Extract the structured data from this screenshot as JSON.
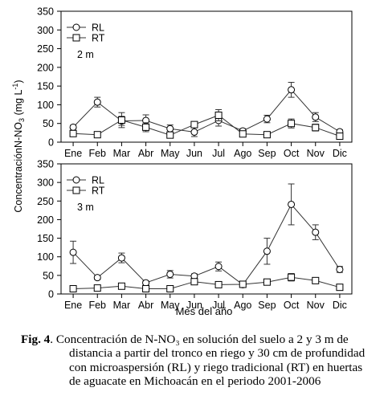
{
  "chart_data": [
    {
      "type": "line",
      "categories": [
        "Ene",
        "Feb",
        "Mar",
        "Abr",
        "May",
        "Jun",
        "Jul",
        "Ago",
        "Sep",
        "Oct",
        "Nov",
        "Dic"
      ],
      "ylim": [
        0,
        350
      ],
      "yticks": [
        "0",
        "50",
        "100",
        "150",
        "200",
        "250",
        "300",
        "350"
      ],
      "annotation": "2 m",
      "series": [
        {
          "name": "RL",
          "marker": "circle",
          "values": [
            40,
            107,
            57,
            58,
            36,
            27,
            58,
            30,
            62,
            140,
            67,
            28
          ],
          "errors": [
            5,
            13,
            12,
            15,
            10,
            12,
            15,
            6,
            10,
            20,
            12,
            5
          ]
        },
        {
          "name": "RT",
          "marker": "square",
          "values": [
            23,
            20,
            59,
            40,
            19,
            47,
            72,
            22,
            20,
            50,
            39,
            16
          ],
          "errors": [
            3,
            3,
            20,
            12,
            3,
            5,
            15,
            4,
            3,
            12,
            9,
            4
          ]
        }
      ]
    },
    {
      "type": "line",
      "categories": [
        "Ene",
        "Feb",
        "Mar",
        "Abr",
        "May",
        "Jun",
        "Jul",
        "Ago",
        "Sep",
        "Oct",
        "Nov",
        "Dic"
      ],
      "ylim": [
        0,
        350
      ],
      "yticks": [
        "0",
        "50",
        "100",
        "150",
        "200",
        "250",
        "300",
        "350"
      ],
      "annotation": "3 m",
      "xlabel": "Mes del año",
      "series": [
        {
          "name": "RL",
          "marker": "circle",
          "values": [
            112,
            44,
            97,
            30,
            53,
            48,
            74,
            25,
            115,
            241,
            166,
            66
          ],
          "errors": [
            30,
            5,
            13,
            5,
            10,
            6,
            12,
            4,
            35,
            55,
            20,
            8
          ]
        },
        {
          "name": "RT",
          "marker": "square",
          "values": [
            14,
            16,
            21,
            14,
            14,
            33,
            25,
            26,
            32,
            45,
            36,
            18
          ],
          "errors": [
            3,
            3,
            3,
            3,
            3,
            5,
            4,
            4,
            6,
            10,
            8,
            4
          ]
        }
      ]
    }
  ],
  "ylabel": "ConcentraciónN-NO",
  "ylabel_sub": "3",
  "ylabel_unit": " (mg L",
  "ylabel_sup": "-1",
  "ylabel_close": ")",
  "caption": {
    "label": "Fig. 4",
    "lines": [
      ".  Concentración de N-NO₃ en solución del suelo a 2 y 3 m de",
      "distancia a partir del tronco en riego y 30 cm de profundidad",
      "con microaspersión (RL) y riego tradicional (RT) en huertas",
      "de aguacate en Michoacán en el periodo 2001-2006"
    ]
  }
}
